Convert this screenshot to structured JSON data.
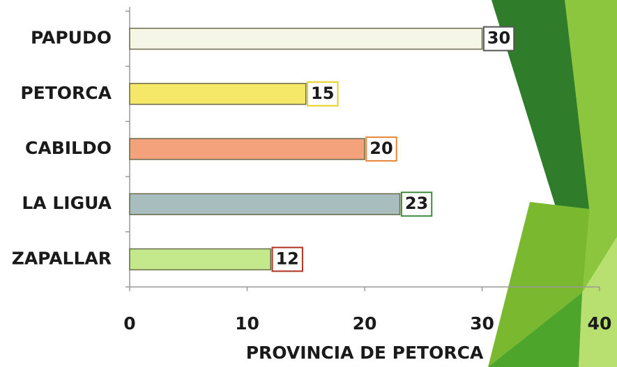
{
  "chart_data": {
    "type": "bar",
    "orientation": "horizontal",
    "x_label": "PROVINCIA DE PETORCA",
    "categories": [
      "PAPUDO",
      "PETORCA",
      "CABILDO",
      "LA LIGUA",
      "ZAPALLAR"
    ],
    "values": [
      30,
      15,
      20,
      23,
      12
    ],
    "colors": [
      "#f6f6e6",
      "#f5e868",
      "#f4a27c",
      "#a8bdbd",
      "#c4e88c"
    ],
    "label_border_colors": [
      "#555555",
      "#e8d020",
      "#e8873a",
      "#3e8a3e",
      "#b03020"
    ],
    "xlim": [
      0,
      40
    ],
    "xticks": [
      0,
      10,
      20,
      30,
      40
    ]
  }
}
